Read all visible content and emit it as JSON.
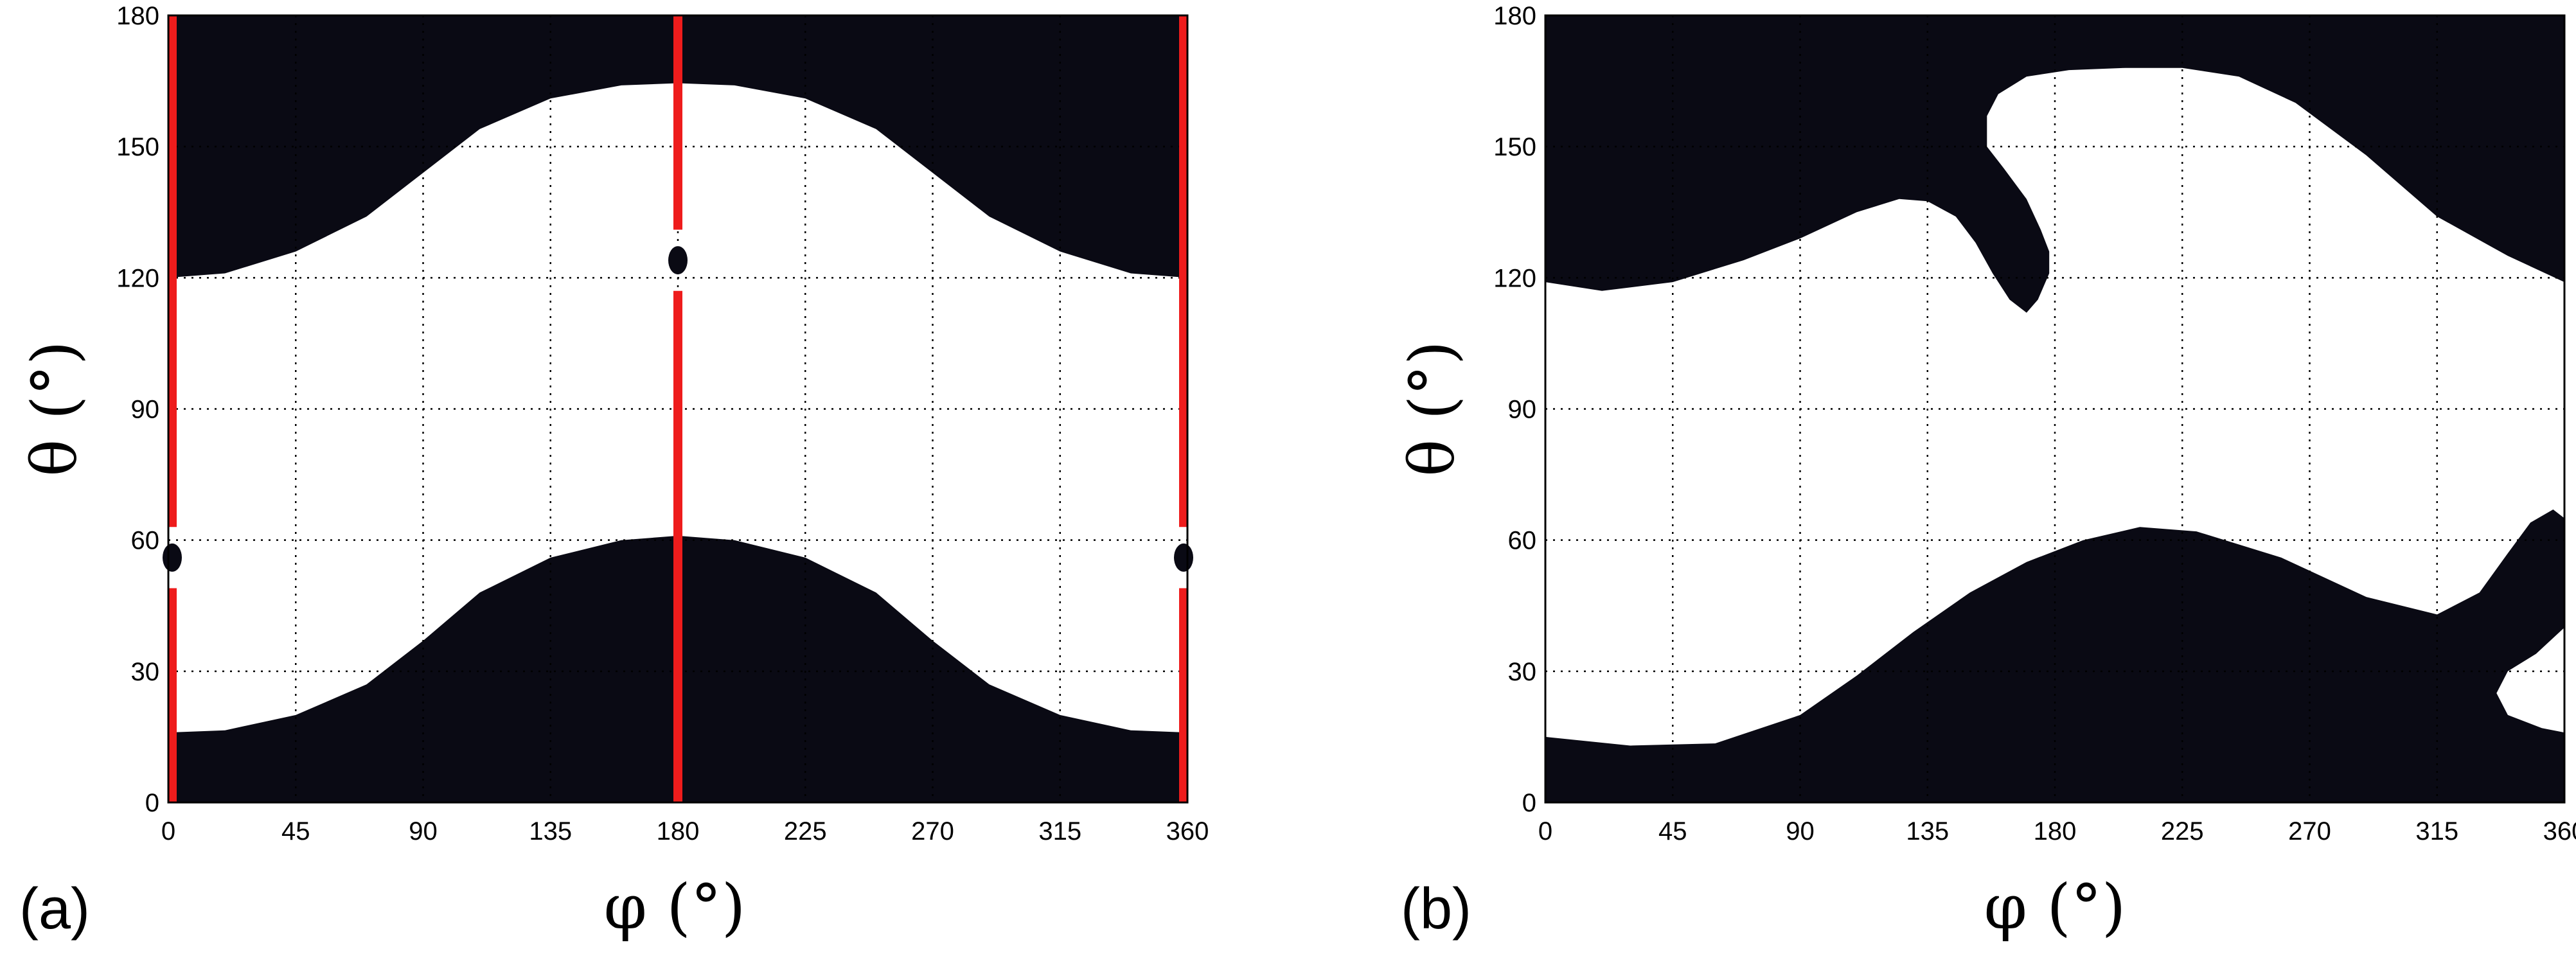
{
  "chart_data": [
    {
      "panel_label": "(a)",
      "type": "heatmap",
      "map": "binary (black / white)",
      "xlabel": "φ (°)",
      "ylabel": "θ (°)",
      "xlim": [
        0,
        360
      ],
      "ylim": [
        0,
        180
      ],
      "xticks": [
        "0",
        "45",
        "90",
        "135",
        "180",
        "225",
        "270",
        "315",
        "360"
      ],
      "yticks": [
        "0",
        "30",
        "60",
        "90",
        "120",
        "150",
        "180"
      ],
      "grid": true,
      "colors": {
        "region": "#0a0a14",
        "background": "#ffffff",
        "marker_line": "#ee1c1c"
      },
      "lower_black_region_upper_boundary": {
        "phi": [
          0,
          20,
          45,
          70,
          90,
          110,
          135,
          160,
          180,
          200,
          225,
          250,
          270,
          290,
          315,
          340,
          360
        ],
        "theta": [
          16,
          16.5,
          20,
          27,
          37,
          48,
          56,
          60,
          61,
          60,
          56,
          48,
          37,
          27,
          20,
          16.5,
          16
        ]
      },
      "upper_black_region_lower_boundary": {
        "phi": [
          0,
          20,
          45,
          70,
          90,
          110,
          135,
          160,
          180,
          200,
          225,
          250,
          270,
          290,
          315,
          340,
          360
        ],
        "theta": [
          120,
          121,
          126,
          134,
          144,
          154,
          161,
          164,
          164.5,
          164,
          161,
          154,
          144,
          134,
          126,
          121,
          120
        ]
      },
      "red_vertical_lines_phi": [
        0,
        180,
        360
      ],
      "dots": [
        {
          "phi": 0,
          "theta": 56
        },
        {
          "phi": 180,
          "theta": 124
        },
        {
          "phi": 360,
          "theta": 56
        }
      ]
    },
    {
      "panel_label": "(b)",
      "type": "heatmap",
      "map": "binary (black / white)",
      "xlabel": "φ (°)",
      "ylabel": "θ (°)",
      "xlim": [
        0,
        360
      ],
      "ylim": [
        0,
        180
      ],
      "xticks": [
        "0",
        "45",
        "90",
        "135",
        "180",
        "225",
        "270",
        "315",
        "360"
      ],
      "yticks": [
        "0",
        "30",
        "60",
        "90",
        "120",
        "150",
        "180"
      ],
      "grid": true,
      "colors": {
        "region": "#0a0a14",
        "background": "#ffffff"
      },
      "lower_black_region_boundary": {
        "phi": [
          0,
          30,
          60,
          90,
          110,
          130,
          150,
          170,
          190,
          210,
          230,
          260,
          290,
          315,
          330,
          340,
          348,
          356,
          360,
          360,
          350,
          340,
          336,
          340,
          352,
          360
        ],
        "theta": [
          15,
          13,
          13.5,
          20,
          29,
          39,
          48,
          55,
          60,
          63,
          62,
          56,
          47,
          43,
          48,
          57,
          64,
          67,
          65,
          40,
          34,
          30,
          25,
          20,
          17,
          16
        ]
      },
      "upper_black_region_boundary": {
        "phi": [
          0,
          20,
          45,
          70,
          90,
          110,
          125,
          135,
          145,
          152,
          158,
          164,
          170,
          174,
          178,
          178,
          175,
          170,
          162,
          156,
          156,
          160,
          170,
          185,
          205,
          225,
          245,
          265,
          290,
          315,
          340,
          360
        ],
        "theta": [
          119,
          117,
          119,
          124,
          129,
          135,
          138,
          137.5,
          134,
          128,
          121,
          115,
          112,
          115,
          121,
          126,
          131,
          138,
          145,
          150,
          157,
          162,
          166,
          167.5,
          168,
          168,
          166,
          160,
          148,
          134,
          125,
          119
        ]
      }
    }
  ]
}
